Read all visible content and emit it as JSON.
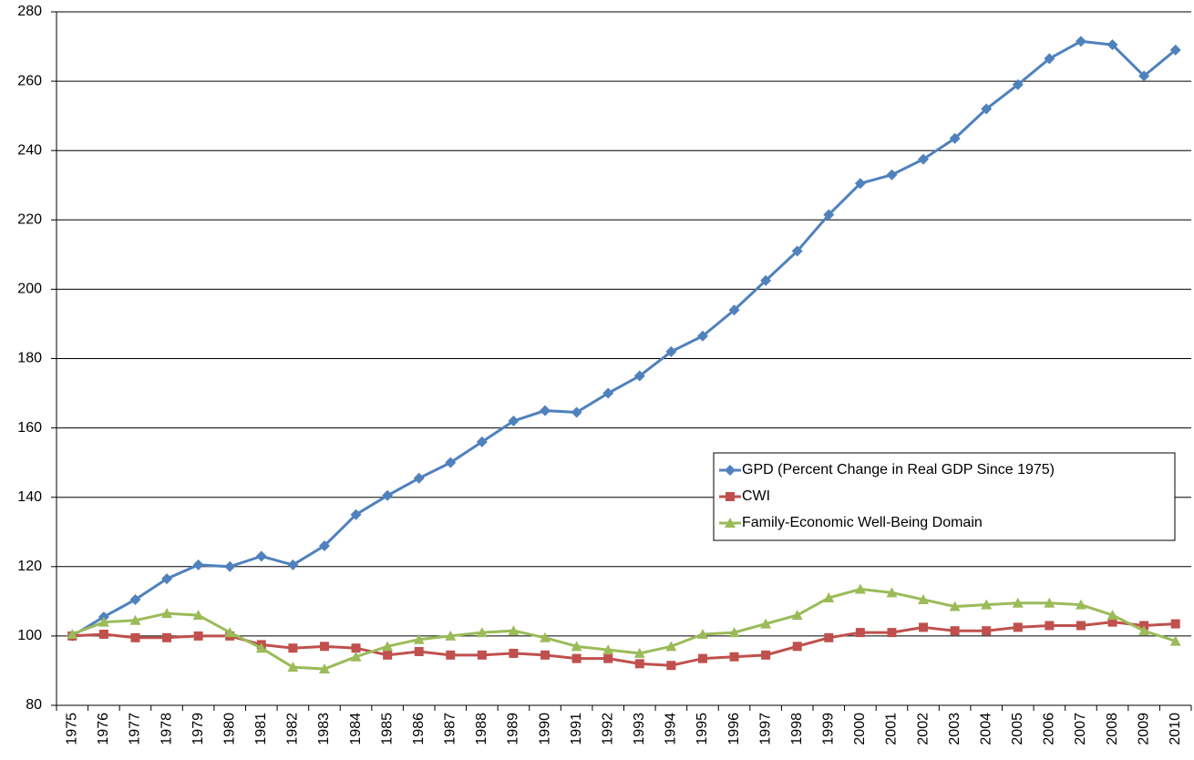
{
  "chart_data": {
    "type": "line",
    "categories": [
      "1975",
      "1976",
      "1977",
      "1978",
      "1979",
      "1980",
      "1981",
      "1982",
      "1983",
      "1984",
      "1985",
      "1986",
      "1987",
      "1988",
      "1989",
      "1990",
      "1991",
      "1992",
      "1993",
      "1994",
      "1995",
      "1996",
      "1997",
      "1998",
      "1999",
      "2000",
      "2001",
      "2002",
      "2003",
      "2004",
      "2005",
      "2006",
      "2007",
      "2008",
      "2009",
      "2010"
    ],
    "series": [
      {
        "name": "GPD (Percent Change in Real GDP Since 1975)",
        "color": "#4f81bd",
        "marker": "diamond",
        "values": [
          100,
          105.5,
          110.5,
          116.5,
          120.5,
          120,
          123,
          120.5,
          126,
          135,
          140.5,
          145.5,
          150,
          156,
          162,
          165,
          164.5,
          170,
          175,
          182,
          186.5,
          194,
          202.5,
          211,
          221.5,
          230.5,
          233,
          237.5,
          243.5,
          252,
          259,
          266.5,
          271.5,
          270.5,
          261.5,
          269
        ]
      },
      {
        "name": "CWI",
        "color": "#c0504d",
        "marker": "square",
        "values": [
          100,
          100.5,
          99.5,
          99.5,
          100,
          100,
          97.5,
          96.5,
          97,
          96.5,
          94.5,
          95.5,
          94.5,
          94.5,
          95,
          94.5,
          93.5,
          93.5,
          92,
          91.5,
          93.5,
          94,
          94.5,
          97,
          99.5,
          101,
          101,
          102.5,
          101.5,
          101.5,
          102.5,
          103,
          103,
          104,
          103,
          103.5
        ]
      },
      {
        "name": "Family-Economic Well-Being Domain",
        "color": "#9bbb59",
        "marker": "triangle",
        "values": [
          100.5,
          104,
          104.5,
          106.5,
          106,
          101,
          96.5,
          91,
          90.5,
          94,
          97,
          99,
          100,
          101,
          101.5,
          99.5,
          97,
          96,
          95,
          97,
          100.5,
          101,
          103.5,
          106,
          111,
          113.5,
          112.5,
          110.5,
          108.5,
          109,
          109.5,
          109.5,
          109,
          106,
          101.5,
          98.5
        ]
      }
    ],
    "ylim": [
      80,
      280
    ],
    "yticks": [
      80,
      100,
      120,
      140,
      160,
      180,
      200,
      220,
      240,
      260,
      280
    ],
    "grid": true
  }
}
